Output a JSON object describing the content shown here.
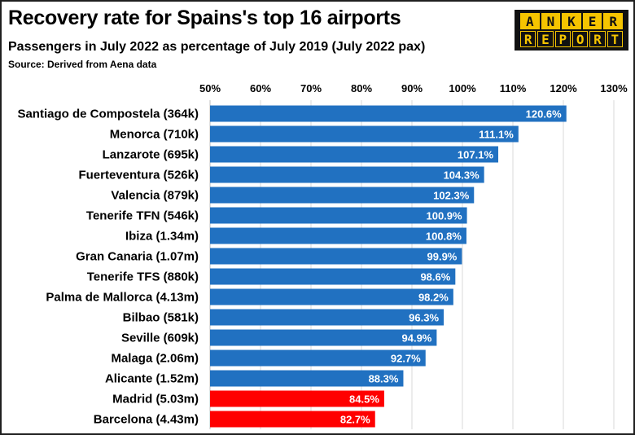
{
  "header": {
    "title": "Recovery rate for Spains's top 16 airports",
    "subtitle": "Passengers in July 2022 as percentage of July 2019 (July 2022 pax)",
    "source": "Source: Derived from Aena data"
  },
  "logo": {
    "line1": [
      "A",
      "N",
      "K",
      "E",
      "R"
    ],
    "line2": [
      "R",
      "E",
      "P",
      "O",
      "R",
      "T"
    ],
    "color": "#f5c400"
  },
  "chart_data": {
    "type": "bar",
    "orientation": "horizontal",
    "categories": [
      "Santiago de Compostela (364k)",
      "Menorca (710k)",
      "Lanzarote (695k)",
      "Fuerteventura (526k)",
      "Valencia (879k)",
      "Tenerife TFN (546k)",
      "Ibiza (1.34m)",
      "Gran Canaria (1.07m)",
      "Tenerife TFS (880k)",
      "Palma de Mallorca (4.13m)",
      "Bilbao (581k)",
      "Seville (609k)",
      "Malaga (2.06m)",
      "Alicante (1.52m)",
      "Madrid (5.03m)",
      "Barcelona (4.43m)"
    ],
    "values": [
      120.6,
      111.1,
      107.1,
      104.3,
      102.3,
      100.9,
      100.8,
      99.9,
      98.6,
      98.2,
      96.3,
      94.9,
      92.7,
      88.3,
      84.5,
      82.7
    ],
    "data_labels": [
      "120.6%",
      "111.1%",
      "107.1%",
      "104.3%",
      "102.3%",
      "100.9%",
      "100.8%",
      "99.9%",
      "98.6%",
      "98.2%",
      "96.3%",
      "94.9%",
      "92.7%",
      "88.3%",
      "84.5%",
      "82.7%"
    ],
    "colors": [
      "#2171c1",
      "#2171c1",
      "#2171c1",
      "#2171c1",
      "#2171c1",
      "#2171c1",
      "#2171c1",
      "#2171c1",
      "#2171c1",
      "#2171c1",
      "#2171c1",
      "#2171c1",
      "#2171c1",
      "#2171c1",
      "#ff0000",
      "#ff0000"
    ],
    "xlim": [
      50,
      130
    ],
    "xticks": [
      50,
      60,
      70,
      80,
      90,
      100,
      110,
      120,
      130
    ],
    "xtick_labels": [
      "50%",
      "60%",
      "70%",
      "80%",
      "90%",
      "100%",
      "110%",
      "120%",
      "130%"
    ],
    "xaxis_position": "top",
    "grid": true
  }
}
